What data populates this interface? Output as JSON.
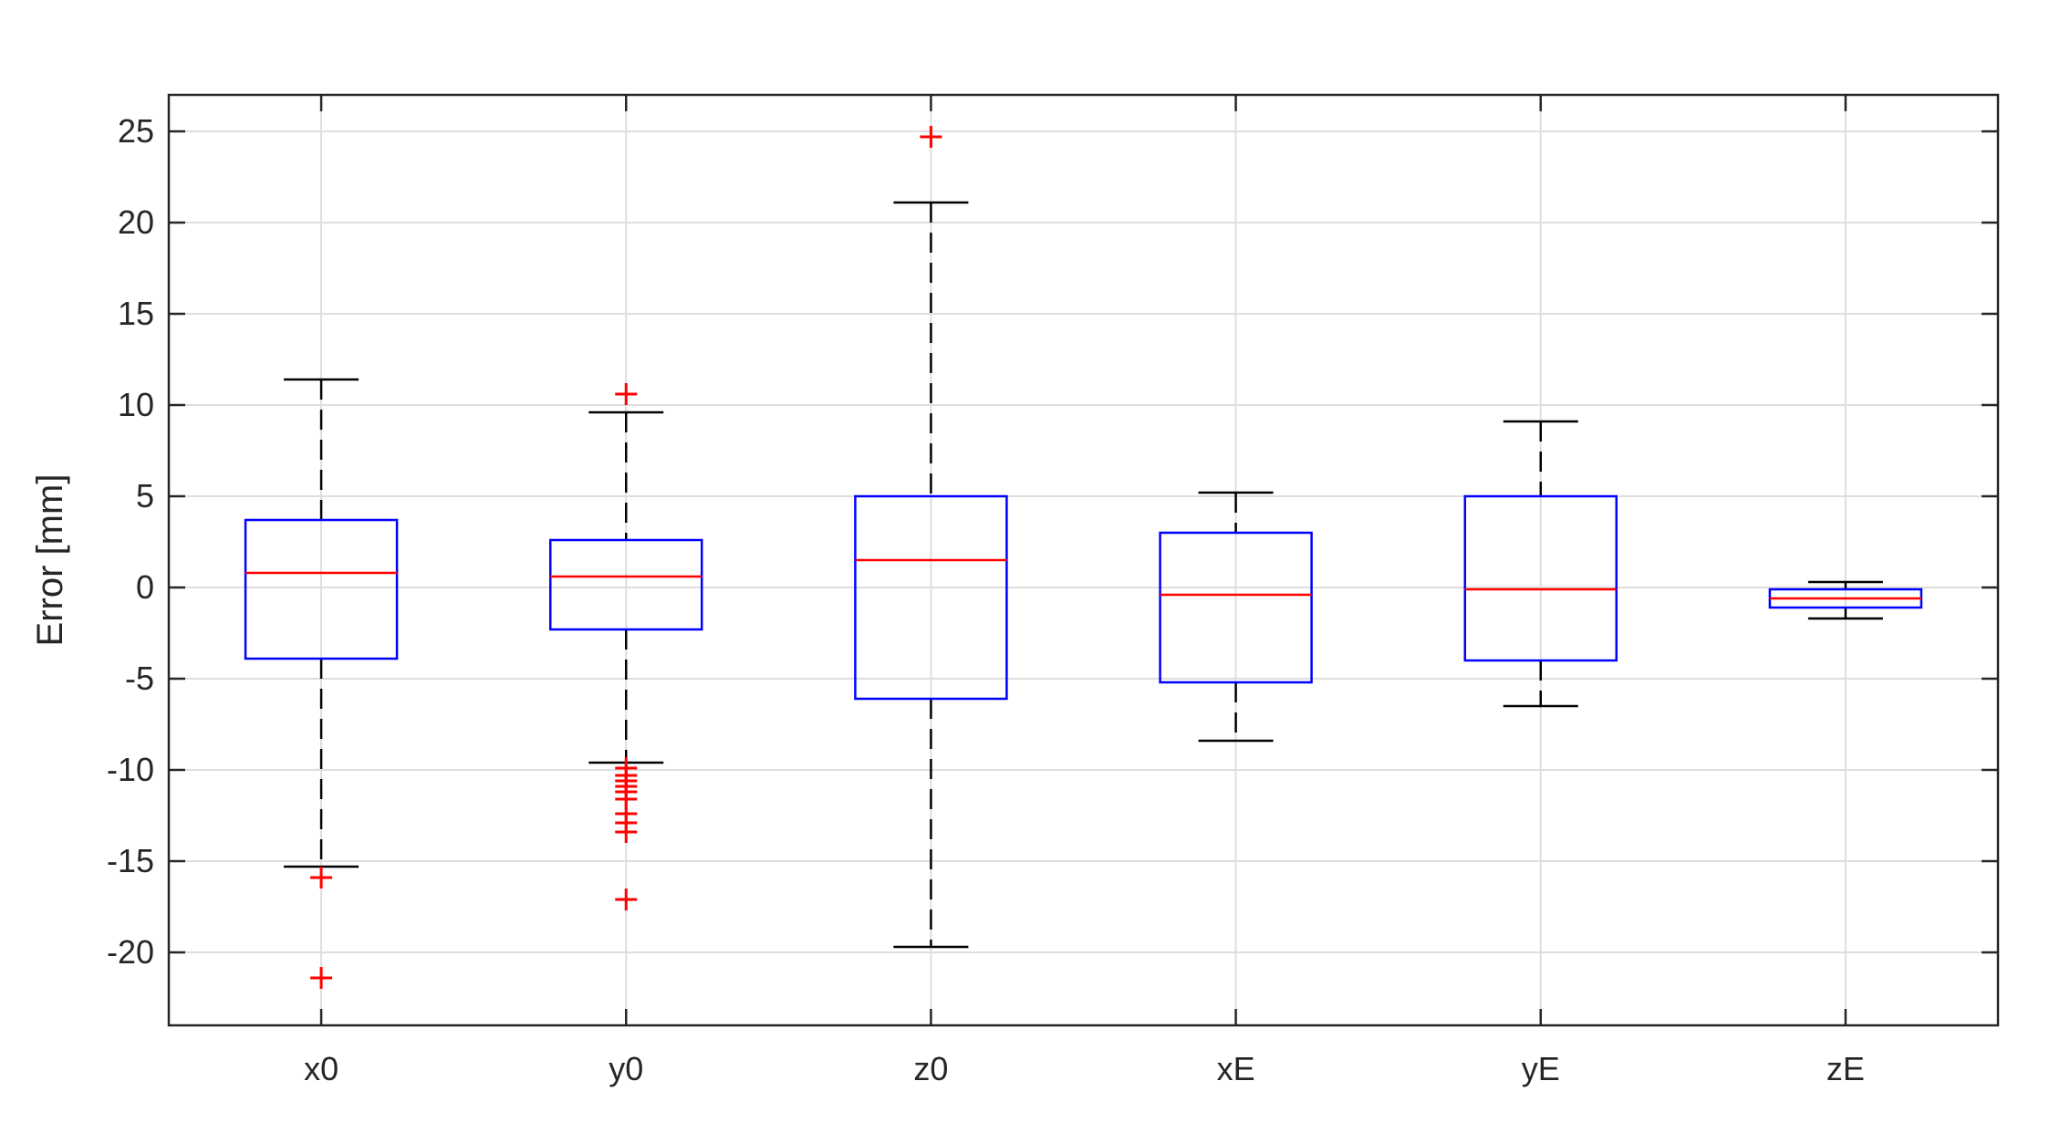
{
  "chart_data": {
    "type": "box",
    "title": "",
    "xlabel": "",
    "ylabel": "Error [mm]",
    "ylim": [
      -24,
      27
    ],
    "yticks": [
      25,
      20,
      15,
      10,
      5,
      0,
      -5,
      -10,
      -15,
      -20
    ],
    "ytick_labels": [
      "25",
      "20",
      "15",
      "10",
      "5",
      "0",
      "-5",
      "-10",
      "-15",
      "-20"
    ],
    "grid": true,
    "categories": [
      "x0",
      "y0",
      "z0",
      "xE",
      "yE",
      "zE"
    ],
    "boxes": [
      {
        "label": "x0",
        "whisker_low": -15.3,
        "q1": -3.9,
        "median": 0.8,
        "q3": 3.7,
        "whisker_high": 11.4,
        "outliers": [
          -15.9,
          -21.4
        ]
      },
      {
        "label": "y0",
        "whisker_low": -9.6,
        "q1": -2.3,
        "median": 0.6,
        "q3": 2.6,
        "whisker_high": 9.6,
        "outliers": [
          10.6,
          -9.9,
          -10.3,
          -10.6,
          -10.9,
          -11.2,
          -11.6,
          -12.4,
          -12.9,
          -13.4,
          -17.1
        ]
      },
      {
        "label": "z0",
        "whisker_low": -19.7,
        "q1": -6.1,
        "median": 1.5,
        "q3": 5.0,
        "whisker_high": 21.1,
        "outliers": [
          24.7
        ]
      },
      {
        "label": "xE",
        "whisker_low": -8.4,
        "q1": -5.2,
        "median": -0.4,
        "q3": 3.0,
        "whisker_high": 5.2,
        "outliers": []
      },
      {
        "label": "yE",
        "whisker_low": -6.5,
        "q1": -4.0,
        "median": -0.1,
        "q3": 5.0,
        "whisker_high": 9.1,
        "outliers": []
      },
      {
        "label": "zE",
        "whisker_low": -1.7,
        "q1": -1.1,
        "median": -0.6,
        "q3": -0.1,
        "whisker_high": 0.3,
        "outliers": []
      }
    ],
    "colors": {
      "box": "#0000ff",
      "median": "#ff0000",
      "whisker": "#000000",
      "outlier": "#ff0000",
      "grid": "#dedede",
      "axis": "#262626"
    }
  }
}
